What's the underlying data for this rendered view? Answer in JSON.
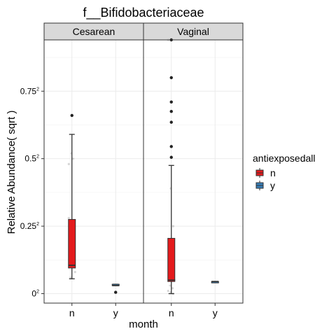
{
  "chart_data": {
    "type": "boxplot",
    "title": "f__Bifidobacteriaceae",
    "xlabel": "month",
    "ylabel": "Relative Abundance( sqrt )",
    "y_scale": "sqrt",
    "y_ticks": [
      {
        "value": 0,
        "base": "0",
        "exp": "2"
      },
      {
        "value": 0.25,
        "base": "0.25",
        "exp": "2"
      },
      {
        "value": 0.5,
        "base": "0.5",
        "exp": "2"
      },
      {
        "value": 0.75,
        "base": "0.75",
        "exp": "2"
      }
    ],
    "ylim_sqrt": [
      -0.035,
      0.94
    ],
    "x_categories": [
      "n",
      "y"
    ],
    "grid": true,
    "legend": {
      "title": "antiexposedall",
      "position": "right",
      "entries": [
        {
          "label": "n",
          "color": "#e41a1c"
        },
        {
          "label": "y",
          "color": "#377eb8"
        }
      ]
    },
    "panels": [
      {
        "strip": "Cesarean",
        "groups": [
          {
            "x": "n",
            "fill": "#e41a1c",
            "box_sqrt": {
              "lower": 0.055,
              "q1": 0.095,
              "median": 0.105,
              "q3": 0.275,
              "upper": 0.59
            },
            "outliers_sqrt": [
              0.66
            ],
            "jitter_sqrt": [
              0.28,
              0.25,
              0.22,
              0.19,
              0.17,
              0.14,
              0.12,
              0.1,
              0.08,
              0.06,
              0.5,
              0.48,
              0.52
            ]
          },
          {
            "x": "y",
            "fill": "#377eb8",
            "box_sqrt": {
              "lower": 0.03,
              "q1": 0.03,
              "median": 0.03,
              "q3": 0.035,
              "upper": 0.035
            },
            "outliers_sqrt": [
              0.005
            ],
            "jitter_sqrt": []
          }
        ]
      },
      {
        "strip": "Vaginal",
        "groups": [
          {
            "x": "n",
            "fill": "#e41a1c",
            "box_sqrt": {
              "lower": 0.0,
              "q1": 0.045,
              "median": 0.05,
              "q3": 0.205,
              "upper": 0.475
            },
            "outliers_sqrt": [
              0.94,
              0.8,
              0.71,
              0.675,
              0.635,
              0.545,
              0.505
            ],
            "jitter_sqrt": [
              0.94,
              0.39,
              0.25,
              0.2,
              0.15,
              0.12,
              0.09,
              0.07,
              0.05,
              0.03,
              0.02,
              0.01,
              0.005,
              0.0
            ]
          },
          {
            "x": "y",
            "fill": "#377eb8",
            "box_sqrt": {
              "lower": 0.045,
              "q1": 0.045,
              "median": 0.045,
              "q3": 0.045,
              "upper": 0.045
            },
            "outliers_sqrt": [],
            "jitter_sqrt": []
          }
        ]
      }
    ]
  }
}
